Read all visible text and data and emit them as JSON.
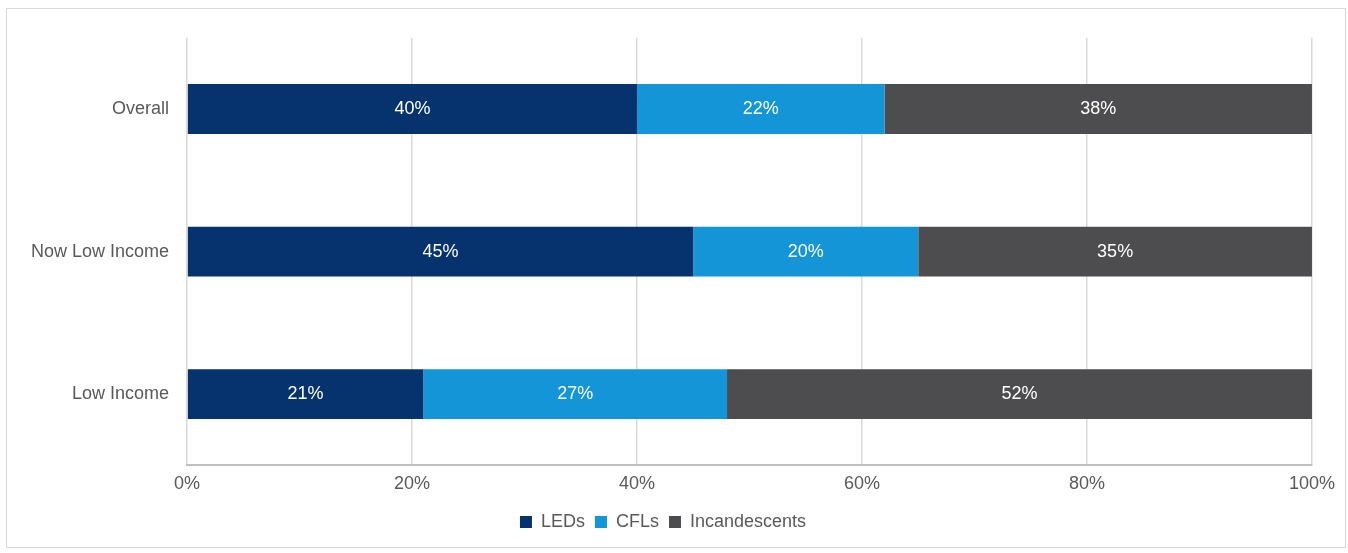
{
  "chart_data": {
    "type": "bar",
    "orientation": "horizontal",
    "stacked": true,
    "categories": [
      "Overall",
      "Now Low Income",
      "Low Income"
    ],
    "series": [
      {
        "name": "LEDs",
        "color": "#06326e",
        "values": [
          40,
          45,
          21
        ],
        "value_labels": [
          "40%",
          "45%",
          "21%"
        ]
      },
      {
        "name": "CFLs",
        "color": "#1395d8",
        "values": [
          22,
          20,
          27
        ],
        "value_labels": [
          "22%",
          "20%",
          "27%"
        ]
      },
      {
        "name": "Incandescents",
        "color": "#4d4d4f",
        "values": [
          38,
          35,
          52
        ],
        "value_labels": [
          "38%",
          "35%",
          "52%"
        ]
      }
    ],
    "xlim": [
      0,
      100
    ],
    "xticks": [
      {
        "value": 0,
        "label": "0%"
      },
      {
        "value": 20,
        "label": "20%"
      },
      {
        "value": 40,
        "label": "40%"
      },
      {
        "value": 60,
        "label": "60%"
      },
      {
        "value": 80,
        "label": "80%"
      },
      {
        "value": 100,
        "label": "100%"
      }
    ],
    "grid": "x",
    "legend": "bottom"
  }
}
